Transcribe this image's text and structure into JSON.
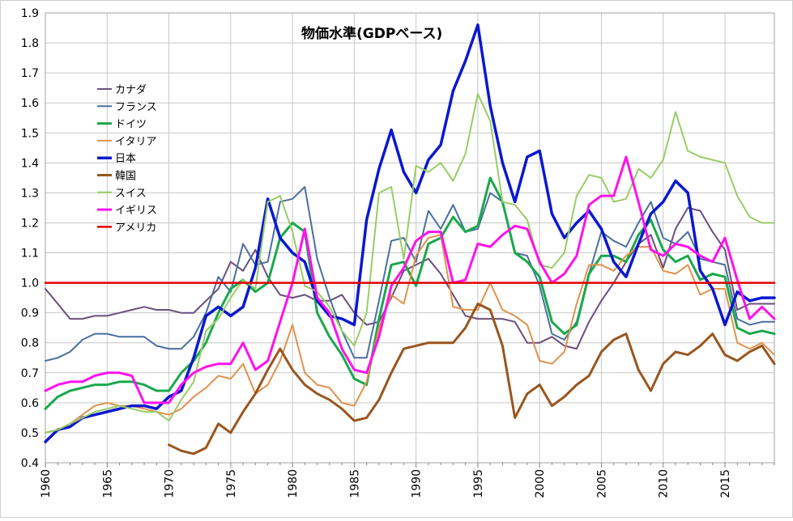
{
  "chart_data": {
    "type": "line",
    "title": "物価水準(GDPベース)",
    "xlabel": "",
    "ylabel": "",
    "xlim": [
      1960,
      2019
    ],
    "ylim": [
      0.4,
      1.9
    ],
    "y_ticks": [
      "0.4",
      "0.5",
      "0.6",
      "0.7",
      "0.8",
      "0.9",
      "1.0",
      "1.1",
      "1.2",
      "1.3",
      "1.4",
      "1.5",
      "1.6",
      "1.7",
      "1.8",
      "1.9"
    ],
    "x_ticks": [
      "1960",
      "1965",
      "1970",
      "1975",
      "1980",
      "1985",
      "1990",
      "1995",
      "2000",
      "2005",
      "2010",
      "2015"
    ],
    "grid": true,
    "legend_position": "upper-left",
    "series": [
      {
        "name": "カナダ",
        "color": "#6b4f7c",
        "width": 2,
        "start": 1960,
        "values": [
          0.98,
          0.93,
          0.88,
          0.88,
          0.89,
          0.89,
          0.9,
          0.91,
          0.92,
          0.91,
          0.91,
          0.9,
          0.9,
          0.94,
          0.98,
          1.07,
          1.04,
          1.11,
          1.02,
          0.96,
          0.95,
          0.96,
          0.94,
          0.94,
          0.96,
          0.9,
          0.86,
          0.87,
          0.95,
          1.04,
          1.06,
          1.08,
          1.03,
          0.96,
          0.89,
          0.88,
          0.88,
          0.88,
          0.87,
          0.8,
          0.8,
          0.82,
          0.79,
          0.78,
          0.87,
          0.94,
          1.0,
          1.07,
          1.13,
          1.16,
          1.05,
          1.18,
          1.25,
          1.24,
          1.17,
          1.11,
          0.91,
          0.93,
          0.93,
          0.93
        ]
      },
      {
        "name": "フランス",
        "color": "#4a6fa0",
        "width": 2,
        "start": 1960,
        "values": [
          0.74,
          0.75,
          0.77,
          0.81,
          0.83,
          0.83,
          0.82,
          0.82,
          0.82,
          0.79,
          0.78,
          0.78,
          0.82,
          0.9,
          1.02,
          0.97,
          1.13,
          1.06,
          1.07,
          1.27,
          1.28,
          1.32,
          1.08,
          0.95,
          0.84,
          0.75,
          0.75,
          0.94,
          1.14,
          1.15,
          1.07,
          1.24,
          1.18,
          1.26,
          1.17,
          1.18,
          1.3,
          1.27,
          1.1,
          1.09,
          0.99,
          0.83,
          0.81,
          0.87,
          1.03,
          1.17,
          1.14,
          1.12,
          1.2,
          1.27,
          1.15,
          1.13,
          1.17,
          1.08,
          1.07,
          1.06,
          0.88,
          0.86,
          0.87,
          0.87
        ]
      },
      {
        "name": "ドイツ",
        "color": "#1aa84c",
        "width": 3,
        "start": 1960,
        "values": [
          0.58,
          0.62,
          0.64,
          0.65,
          0.66,
          0.66,
          0.67,
          0.67,
          0.66,
          0.64,
          0.64,
          0.7,
          0.74,
          0.8,
          0.9,
          0.98,
          1.01,
          0.97,
          1.0,
          1.15,
          1.2,
          1.17,
          0.9,
          0.82,
          0.76,
          0.68,
          0.66,
          0.88,
          1.06,
          1.07,
          0.99,
          1.13,
          1.15,
          1.22,
          1.17,
          1.19,
          1.35,
          1.27,
          1.1,
          1.07,
          1.02,
          0.87,
          0.83,
          0.86,
          1.03,
          1.09,
          1.09,
          1.07,
          1.16,
          1.21,
          1.11,
          1.07,
          1.09,
          1.01,
          1.03,
          1.02,
          0.85,
          0.83,
          0.84,
          0.83
        ]
      },
      {
        "name": "イタリア",
        "color": "#e0924c",
        "width": 2,
        "start": 1960,
        "values": [
          0.5,
          0.51,
          0.53,
          0.56,
          0.59,
          0.6,
          0.59,
          0.59,
          0.58,
          0.57,
          0.56,
          0.58,
          0.62,
          0.65,
          0.69,
          0.68,
          0.73,
          0.63,
          0.66,
          0.74,
          0.86,
          0.7,
          0.66,
          0.65,
          0.6,
          0.59,
          0.67,
          0.85,
          0.96,
          0.93,
          1.09,
          1.15,
          1.16,
          0.92,
          0.91,
          0.91,
          1.0,
          0.91,
          0.89,
          0.86,
          0.74,
          0.73,
          0.77,
          0.93,
          1.06,
          1.06,
          1.04,
          1.09,
          1.12,
          1.12,
          1.04,
          1.03,
          1.06,
          0.96,
          0.98,
          0.98,
          0.8,
          0.78,
          0.8,
          0.76
        ]
      },
      {
        "name": "日本",
        "color": "#0a18d0",
        "width": 3.5,
        "start": 1960,
        "values": [
          0.47,
          0.51,
          0.52,
          0.55,
          0.56,
          0.57,
          0.58,
          0.59,
          0.59,
          0.58,
          0.62,
          0.64,
          0.75,
          0.89,
          0.92,
          0.89,
          0.92,
          1.05,
          1.28,
          1.15,
          1.1,
          1.07,
          0.94,
          0.89,
          0.88,
          0.86,
          1.21,
          1.38,
          1.51,
          1.37,
          1.3,
          1.41,
          1.46,
          1.64,
          1.74,
          1.86,
          1.59,
          1.4,
          1.27,
          1.42,
          1.44,
          1.23,
          1.15,
          1.2,
          1.24,
          1.18,
          1.07,
          1.02,
          1.13,
          1.23,
          1.27,
          1.34,
          1.3,
          1.04,
          0.98,
          0.86,
          0.97,
          0.94,
          0.95,
          0.95
        ]
      },
      {
        "name": "韓国",
        "color": "#99561e",
        "width": 3,
        "start": 1970,
        "values": [
          0.46,
          0.44,
          0.43,
          0.45,
          0.53,
          0.5,
          0.57,
          0.63,
          0.71,
          0.78,
          0.71,
          0.66,
          0.63,
          0.61,
          0.58,
          0.54,
          0.55,
          0.61,
          0.7,
          0.78,
          0.79,
          0.8,
          0.8,
          0.8,
          0.85,
          0.93,
          0.91,
          0.79,
          0.55,
          0.63,
          0.66,
          0.59,
          0.62,
          0.66,
          0.69,
          0.77,
          0.81,
          0.83,
          0.71,
          0.64,
          0.73,
          0.77,
          0.76,
          0.79,
          0.83,
          0.76,
          0.74,
          0.77,
          0.79,
          0.73
        ]
      },
      {
        "name": "スイス",
        "color": "#99cc66",
        "width": 2,
        "start": 1960,
        "values": [
          0.5,
          0.51,
          0.53,
          0.55,
          0.57,
          0.58,
          0.59,
          0.58,
          0.57,
          0.57,
          0.54,
          0.61,
          0.67,
          0.84,
          0.88,
          0.95,
          1.01,
          0.98,
          1.27,
          1.29,
          1.17,
          0.99,
          0.97,
          0.92,
          0.84,
          0.79,
          0.9,
          1.3,
          1.32,
          1.08,
          1.39,
          1.37,
          1.4,
          1.34,
          1.43,
          1.63,
          1.54,
          1.27,
          1.26,
          1.21,
          1.06,
          1.05,
          1.1,
          1.29,
          1.36,
          1.35,
          1.27,
          1.28,
          1.38,
          1.35,
          1.41,
          1.57,
          1.44,
          1.42,
          1.41,
          1.4,
          1.29,
          1.22,
          1.2,
          1.2
        ]
      },
      {
        "name": "イギリス",
        "color": "#ff10ee",
        "width": 3,
        "start": 1960,
        "values": [
          0.64,
          0.66,
          0.67,
          0.67,
          0.69,
          0.7,
          0.7,
          0.69,
          0.6,
          0.6,
          0.6,
          0.66,
          0.7,
          0.72,
          0.73,
          0.73,
          0.8,
          0.71,
          0.74,
          0.87,
          1.0,
          1.18,
          0.95,
          0.9,
          0.78,
          0.71,
          0.7,
          0.82,
          0.99,
          1.05,
          1.14,
          1.17,
          1.17,
          1.0,
          1.01,
          1.13,
          1.12,
          1.16,
          1.19,
          1.18,
          1.07,
          1.0,
          1.03,
          1.09,
          1.26,
          1.29,
          1.29,
          1.42,
          1.27,
          1.11,
          1.09,
          1.13,
          1.12,
          1.09,
          1.07,
          1.15,
          1.01,
          0.88,
          0.92,
          0.88
        ]
      },
      {
        "name": "アメリカ",
        "color": "#e00000",
        "width": 2.5,
        "start": 1960,
        "values": [
          1,
          1,
          1,
          1,
          1,
          1,
          1,
          1,
          1,
          1,
          1,
          1,
          1,
          1,
          1,
          1,
          1,
          1,
          1,
          1,
          1,
          1,
          1,
          1,
          1,
          1,
          1,
          1,
          1,
          1,
          1,
          1,
          1,
          1,
          1,
          1,
          1,
          1,
          1,
          1,
          1,
          1,
          1,
          1,
          1,
          1,
          1,
          1,
          1,
          1,
          1,
          1,
          1,
          1,
          1,
          1,
          1,
          1,
          1,
          1
        ]
      }
    ]
  }
}
